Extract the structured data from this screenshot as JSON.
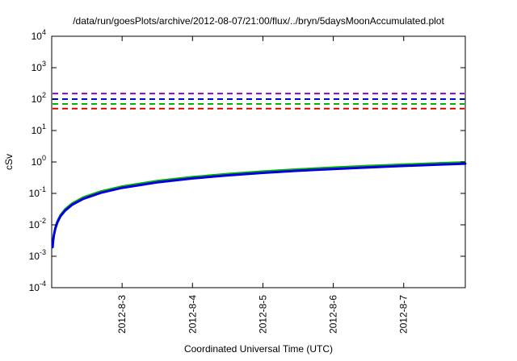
{
  "chart_data": {
    "type": "line",
    "title": "/data/run/goesPlots/archive/2012-08-07/21:00/flux/../bryn/5daysMoonAccumulated.plot",
    "xlabel": "Coordinated Universal Time (UTC)",
    "ylabel": "cSv",
    "y_scale": "log",
    "ylim": [
      0.0001,
      10000
    ],
    "y_ticks_exponents": [
      -4,
      -3,
      -2,
      -1,
      0,
      1,
      2,
      3,
      4
    ],
    "x_domain_days": [
      0,
      5.875
    ],
    "x_ticks": [
      {
        "day": 1,
        "label": "2012-8-3"
      },
      {
        "day": 2,
        "label": "2012-8-4"
      },
      {
        "day": 3,
        "label": "2012-8-5"
      },
      {
        "day": 4,
        "label": "2012-8-6"
      },
      {
        "day": 5,
        "label": "2012-8-7"
      }
    ],
    "grid": "off",
    "legend": "none",
    "hlines": [
      {
        "name": "dose-limit-purple",
        "value": 150,
        "color": "#9400d3",
        "style": "dashed"
      },
      {
        "name": "dose-limit-blue",
        "value": 100,
        "color": "#0000e0",
        "style": "dashed"
      },
      {
        "name": "dose-limit-green",
        "value": 70,
        "color": "#00b400",
        "style": "dashed"
      },
      {
        "name": "dose-limit-red",
        "value": 50,
        "color": "#e00000",
        "style": "dashed"
      }
    ],
    "series": [
      {
        "name": "accumulated-dose-green",
        "color": "#00b400",
        "width": 2,
        "x": [
          0.013,
          0.02,
          0.03,
          0.05,
          0.08,
          0.125,
          0.19,
          0.29,
          0.45,
          0.7,
          1.0,
          1.5,
          2.0,
          2.5,
          3.0,
          3.5,
          4.0,
          4.5,
          5.0,
          5.5,
          5.875
        ],
        "y": [
          0.00221,
          0.0034,
          0.0051,
          0.0085,
          0.0136,
          0.0213,
          0.0323,
          0.0493,
          0.0765,
          0.119,
          0.17,
          0.255,
          0.34,
          0.425,
          0.51,
          0.595,
          0.68,
          0.765,
          0.85,
          0.935,
          0.999
        ]
      },
      {
        "name": "accumulated-dose-blue",
        "color": "#0000e0",
        "width": 3,
        "x": [
          0.013,
          0.02,
          0.03,
          0.05,
          0.08,
          0.125,
          0.19,
          0.29,
          0.45,
          0.7,
          1.0,
          1.5,
          2.0,
          2.5,
          3.0,
          3.5,
          4.0,
          4.5,
          5.0,
          5.5,
          5.875
        ],
        "y": [
          0.00195,
          0.003,
          0.0045,
          0.0075,
          0.012,
          0.0188,
          0.0285,
          0.0435,
          0.0675,
          0.105,
          0.15,
          0.225,
          0.3,
          0.375,
          0.45,
          0.525,
          0.6,
          0.675,
          0.75,
          0.825,
          0.881
        ]
      }
    ]
  }
}
